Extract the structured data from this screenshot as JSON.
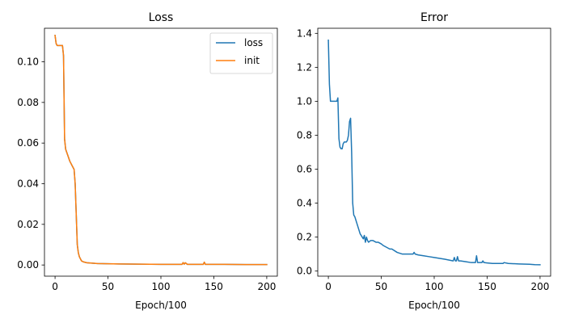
{
  "figure": {
    "background": "#ffffff"
  },
  "chart_data": [
    {
      "type": "line",
      "title": "Loss",
      "xlabel": "Epoch/100",
      "ylabel": "",
      "xlim": [
        -10,
        210
      ],
      "ylim": [
        -0.0055,
        0.1165
      ],
      "xticks": [
        0,
        50,
        100,
        150,
        200
      ],
      "yticks": [
        0.0,
        0.02,
        0.04,
        0.06,
        0.08,
        0.1
      ],
      "ytick_labels": [
        "0.00",
        "0.02",
        "0.04",
        "0.06",
        "0.08",
        "0.10"
      ],
      "grid": false,
      "legend": "top-right",
      "series": [
        {
          "name": "loss",
          "color": "#1f77b4",
          "x": [
            0,
            1,
            2,
            3,
            4,
            5,
            6,
            7,
            8,
            9,
            10,
            12,
            14,
            15,
            16,
            18,
            19,
            20,
            21,
            22,
            23,
            25,
            27,
            30,
            35,
            40,
            50,
            60,
            80,
            100,
            120,
            121,
            122,
            123,
            125,
            130,
            140,
            141,
            142,
            150,
            160,
            180,
            200
          ],
          "y": [
            0.113,
            0.109,
            0.108,
            0.108,
            0.108,
            0.108,
            0.108,
            0.108,
            0.103,
            0.062,
            0.057,
            0.054,
            0.051,
            0.05,
            0.049,
            0.047,
            0.04,
            0.025,
            0.01,
            0.006,
            0.004,
            0.002,
            0.0015,
            0.0011,
            0.0009,
            0.0007,
            0.0006,
            0.0005,
            0.0004,
            0.0003,
            0.0003,
            0.0012,
            0.0004,
            0.0011,
            0.0003,
            0.0003,
            0.0003,
            0.0014,
            0.0003,
            0.0003,
            0.0003,
            0.0002,
            0.0002
          ]
        },
        {
          "name": "init",
          "color": "#ff7f0e",
          "x": [
            0,
            1,
            2,
            3,
            4,
            5,
            6,
            7,
            8,
            9,
            10,
            12,
            14,
            15,
            16,
            18,
            19,
            20,
            21,
            22,
            23,
            25,
            27,
            30,
            35,
            40,
            50,
            60,
            80,
            100,
            120,
            121,
            122,
            123,
            125,
            130,
            140,
            141,
            142,
            150,
            160,
            180,
            200
          ],
          "y": [
            0.113,
            0.109,
            0.108,
            0.108,
            0.108,
            0.108,
            0.108,
            0.108,
            0.103,
            0.062,
            0.057,
            0.054,
            0.051,
            0.05,
            0.049,
            0.047,
            0.04,
            0.025,
            0.01,
            0.006,
            0.004,
            0.002,
            0.0015,
            0.0011,
            0.0009,
            0.0007,
            0.0006,
            0.0005,
            0.0004,
            0.0003,
            0.0003,
            0.0012,
            0.0004,
            0.0011,
            0.0003,
            0.0003,
            0.0003,
            0.0014,
            0.0003,
            0.0003,
            0.0003,
            0.0002,
            0.0002
          ]
        }
      ]
    },
    {
      "type": "line",
      "title": "Error",
      "xlabel": "Epoch/100",
      "ylabel": "",
      "xlim": [
        -10,
        210
      ],
      "ylim": [
        -0.03,
        1.43
      ],
      "xticks": [
        0,
        50,
        100,
        150,
        200
      ],
      "yticks": [
        0.0,
        0.2,
        0.4,
        0.6,
        0.8,
        1.0,
        1.2,
        1.4
      ],
      "ytick_labels": [
        "0.0",
        "0.2",
        "0.4",
        "0.6",
        "0.8",
        "1.0",
        "1.2",
        "1.4"
      ],
      "grid": false,
      "legend": "none",
      "series": [
        {
          "name": "",
          "color": "#1f77b4",
          "x": [
            0,
            1,
            2,
            3,
            5,
            7,
            8,
            9,
            10,
            11,
            12,
            13,
            14,
            15,
            16,
            17,
            18,
            19,
            20,
            21,
            22,
            23,
            24,
            25,
            27,
            30,
            32,
            33,
            34,
            35,
            36,
            37,
            38,
            40,
            42,
            45,
            47,
            50,
            52,
            55,
            58,
            60,
            65,
            70,
            75,
            80,
            81,
            82,
            85,
            90,
            95,
            100,
            110,
            118,
            119,
            120,
            121,
            122,
            123,
            125,
            130,
            135,
            139,
            140,
            141,
            142,
            145,
            146,
            147,
            150,
            155,
            160,
            165,
            166,
            170,
            180,
            190,
            195,
            200
          ],
          "y": [
            1.36,
            1.1,
            1.0,
            1.0,
            1.0,
            1.0,
            1.0,
            1.02,
            0.78,
            0.73,
            0.72,
            0.72,
            0.75,
            0.76,
            0.76,
            0.76,
            0.77,
            0.8,
            0.88,
            0.9,
            0.7,
            0.4,
            0.33,
            0.32,
            0.28,
            0.22,
            0.2,
            0.19,
            0.21,
            0.17,
            0.2,
            0.18,
            0.17,
            0.18,
            0.18,
            0.17,
            0.17,
            0.16,
            0.15,
            0.14,
            0.13,
            0.13,
            0.11,
            0.1,
            0.1,
            0.1,
            0.11,
            0.1,
            0.095,
            0.09,
            0.085,
            0.08,
            0.07,
            0.06,
            0.08,
            0.06,
            0.06,
            0.085,
            0.06,
            0.06,
            0.055,
            0.05,
            0.05,
            0.09,
            0.05,
            0.05,
            0.05,
            0.06,
            0.05,
            0.048,
            0.045,
            0.045,
            0.045,
            0.05,
            0.045,
            0.042,
            0.04,
            0.038,
            0.037
          ]
        }
      ]
    }
  ]
}
